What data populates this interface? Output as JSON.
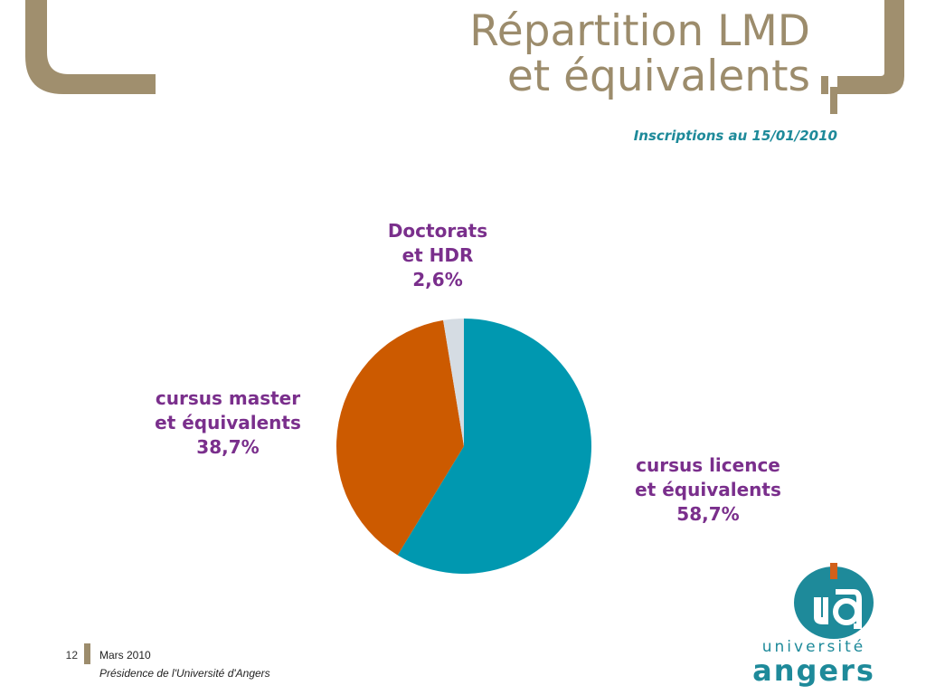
{
  "slide": {
    "title_line1": "Répartition LMD",
    "title_line2": "et équivalents",
    "subtitle": "Inscriptions au 15/01/2010"
  },
  "chart_data": {
    "type": "pie",
    "title": "",
    "slices": [
      {
        "label_line1": "cursus licence",
        "label_line2": "et équivalents",
        "pct_text": "58,7%",
        "value": 58.7,
        "color": "#0098b0"
      },
      {
        "label_line1": "cursus master",
        "label_line2": "et équivalents",
        "pct_text": "38,7%",
        "value": 38.7,
        "color": "#cc5a00"
      },
      {
        "label_line1": "Doctorats",
        "label_line2": "et HDR",
        "pct_text": "2,6%",
        "value": 2.6,
        "color": "#d5dce3"
      }
    ]
  },
  "footer": {
    "page_number": "12",
    "date": "Mars 2010",
    "organization": "Présidence de l'Université d'Angers"
  },
  "logo": {
    "line1": "université",
    "line2": "angers",
    "mark_color": "#1e8a9a",
    "accent_color": "#d2601a"
  },
  "colors": {
    "title": "#9c8c6c",
    "subtitle": "#1e8a9a",
    "labels": "#7a2f8c"
  }
}
